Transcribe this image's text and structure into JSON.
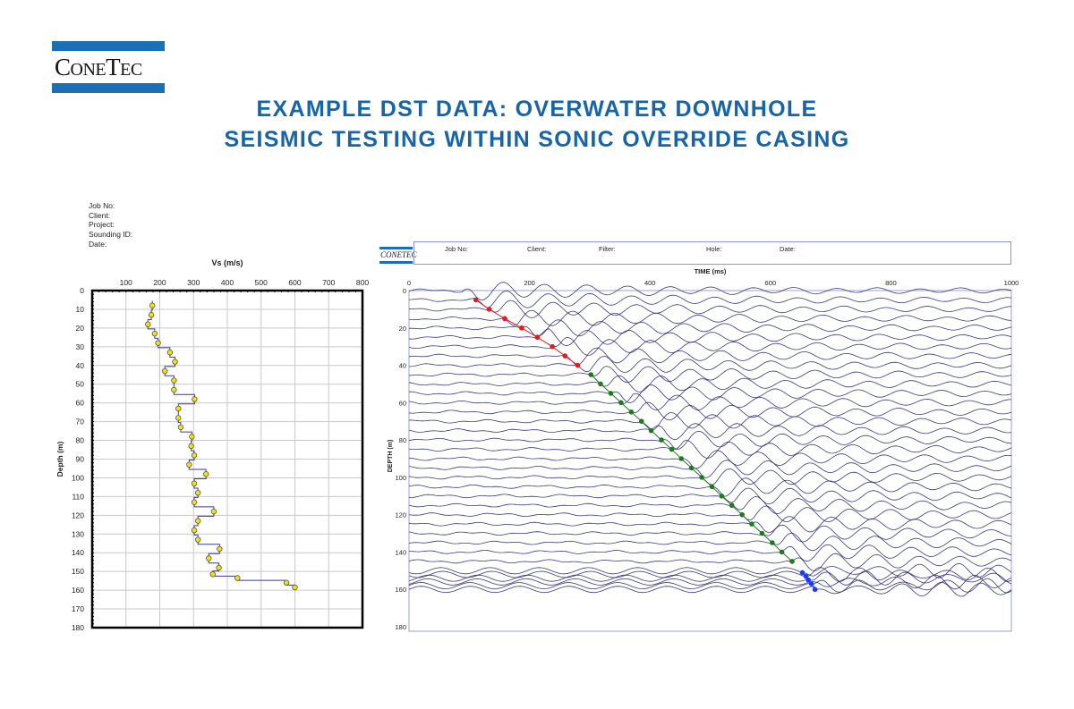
{
  "brand": {
    "logo_text": "ConeTec",
    "color": "#1a6fb5"
  },
  "title": {
    "line1": "EXAMPLE DST DATA: OVERWATER DOWNHOLE",
    "line2": "SEISMIC TESTING WITHIN SONIC OVERRIDE CASING",
    "color": "#1565a8"
  },
  "left_header": {
    "job_no": "Job No:",
    "client": "Client:",
    "project": "Project:",
    "sounding_id": "Sounding ID:",
    "date": "Date:"
  },
  "right_header": {
    "job_no": "Job No:",
    "client": "Client:",
    "filter": "Filter:",
    "hole": "Hole:",
    "date": "Date:"
  },
  "chart_data": [
    {
      "type": "line",
      "title": "Vs (m/s)",
      "xlabel": "Vs (m/s)",
      "ylabel": "Depth (m)",
      "xlim": [
        0,
        800
      ],
      "ylim": [
        180,
        0
      ],
      "x_ticks": [
        100,
        200,
        300,
        400,
        500,
        600,
        700,
        800
      ],
      "y_ticks": [
        0,
        10,
        20,
        30,
        40,
        50,
        60,
        70,
        80,
        90,
        100,
        110,
        120,
        130,
        140,
        150,
        160,
        170,
        180
      ],
      "grid": true,
      "x_axis_position": "top",
      "line_color": "#3a3aa0",
      "marker_color": "#f2e600",
      "points": [
        {
          "depth": 8,
          "vs": 178
        },
        {
          "depth": 13,
          "vs": 175
        },
        {
          "depth": 18,
          "vs": 165
        },
        {
          "depth": 23,
          "vs": 185
        },
        {
          "depth": 28,
          "vs": 195
        },
        {
          "depth": 33,
          "vs": 230
        },
        {
          "depth": 38,
          "vs": 245
        },
        {
          "depth": 43,
          "vs": 215
        },
        {
          "depth": 48,
          "vs": 242
        },
        {
          "depth": 53,
          "vs": 242
        },
        {
          "depth": 58,
          "vs": 303
        },
        {
          "depth": 63,
          "vs": 255
        },
        {
          "depth": 68,
          "vs": 255
        },
        {
          "depth": 73,
          "vs": 262
        },
        {
          "depth": 78,
          "vs": 295
        },
        {
          "depth": 83,
          "vs": 293
        },
        {
          "depth": 88,
          "vs": 302
        },
        {
          "depth": 93,
          "vs": 287
        },
        {
          "depth": 98,
          "vs": 337
        },
        {
          "depth": 103,
          "vs": 302
        },
        {
          "depth": 108,
          "vs": 313
        },
        {
          "depth": 113,
          "vs": 302
        },
        {
          "depth": 118,
          "vs": 360
        },
        {
          "depth": 123,
          "vs": 313
        },
        {
          "depth": 128,
          "vs": 302
        },
        {
          "depth": 133,
          "vs": 313
        },
        {
          "depth": 138,
          "vs": 377
        },
        {
          "depth": 143,
          "vs": 345
        },
        {
          "depth": 148,
          "vs": 375
        },
        {
          "depth": 151.5,
          "vs": 357
        },
        {
          "depth": 153.5,
          "vs": 430
        },
        {
          "depth": 156,
          "vs": 575
        },
        {
          "depth": 158.5,
          "vs": 600
        }
      ]
    },
    {
      "type": "line",
      "title": "TIME (ms)",
      "xlabel": "TIME (ms)",
      "ylabel": "DEPTH (m)",
      "xlim": [
        0,
        1000
      ],
      "ylim": [
        180,
        0
      ],
      "x_ticks": [
        0,
        200,
        400,
        600,
        800,
        1000
      ],
      "y_ticks": [
        0,
        20,
        40,
        60,
        80,
        100,
        120,
        140,
        160,
        180
      ],
      "trace_color": "#23237a",
      "trace_depths": [
        0,
        5,
        10,
        15,
        20,
        25,
        30,
        35,
        40,
        45,
        50,
        55,
        60,
        65,
        70,
        75,
        80,
        85,
        90,
        95,
        100,
        105,
        110,
        115,
        120,
        125,
        130,
        135,
        140,
        145,
        150,
        152,
        154,
        156,
        158,
        160
      ],
      "pick_series": [
        {
          "color": "#e8191c",
          "picks": [
            {
              "depth": 5,
              "time": 111
            },
            {
              "depth": 10,
              "time": 133
            },
            {
              "depth": 15,
              "time": 159
            },
            {
              "depth": 20,
              "time": 187
            },
            {
              "depth": 25,
              "time": 213
            },
            {
              "depth": 30,
              "time": 238
            },
            {
              "depth": 35,
              "time": 259
            },
            {
              "depth": 40,
              "time": 280
            }
          ]
        },
        {
          "color": "#1f7a1f",
          "picks": [
            {
              "depth": 45,
              "time": 302
            },
            {
              "depth": 50,
              "time": 318
            },
            {
              "depth": 55,
              "time": 335
            },
            {
              "depth": 60,
              "time": 352
            },
            {
              "depth": 65,
              "time": 369
            },
            {
              "depth": 70,
              "time": 386
            },
            {
              "depth": 75,
              "time": 402
            },
            {
              "depth": 80,
              "time": 419
            },
            {
              "depth": 85,
              "time": 436
            },
            {
              "depth": 90,
              "time": 452
            },
            {
              "depth": 95,
              "time": 469
            },
            {
              "depth": 100,
              "time": 486
            },
            {
              "depth": 105,
              "time": 503
            },
            {
              "depth": 110,
              "time": 519
            },
            {
              "depth": 115,
              "time": 536
            },
            {
              "depth": 120,
              "time": 553
            },
            {
              "depth": 125,
              "time": 569
            },
            {
              "depth": 130,
              "time": 586
            },
            {
              "depth": 135,
              "time": 603
            },
            {
              "depth": 140,
              "time": 619
            },
            {
              "depth": 145,
              "time": 636
            }
          ]
        },
        {
          "color": "#1a3cf0",
          "picks": [
            {
              "depth": 151,
              "time": 653
            },
            {
              "depth": 153,
              "time": 659
            },
            {
              "depth": 155,
              "time": 663
            },
            {
              "depth": 157,
              "time": 668
            },
            {
              "depth": 160,
              "time": 674
            }
          ]
        }
      ]
    }
  ]
}
